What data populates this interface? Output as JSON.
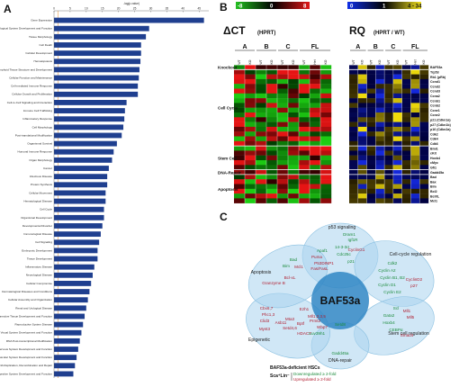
{
  "panels": {
    "a": "A",
    "b": "B",
    "c": "C"
  },
  "chart_data": {
    "type": "bar",
    "orientation": "horizontal",
    "xlabel": "-log(p-value)",
    "xticks": [
      0,
      5,
      10,
      15,
      20,
      25,
      30,
      35,
      40,
      45
    ],
    "xlim": [
      0,
      48
    ],
    "threshold_line": 1.3,
    "categories": [
      "Gene Expression",
      "Hematological System Development and Function",
      "Tissue Morphology",
      "Cell Death",
      "Cellular Development",
      "Hematopoiesis",
      "Lymphoid Tissue Structure and Development",
      "Cellular Function and Maintenance",
      "Cell-mediated Immune Response",
      "Cellular Growth and Proliferation",
      "Cell-to-Cell Signaling and Interaction",
      "Immune Cell Trafficking",
      "Inflammatory Response",
      "Cell Morphology",
      "Post-translational Modification",
      "Organismal Survival",
      "Humoral Immune Response",
      "Organ Morphology",
      "Cancer",
      "Infectious Disease",
      "Protein Synthesis",
      "Cellular Movement",
      "Hematological Disease",
      "Cell Cycle",
      "Organismal Development",
      "Developmental Disorder",
      "Immunological Disease",
      "Cell Signaling",
      "Embryonic Development",
      "Tissue Development",
      "Inflammatory Disease",
      "Neurological Disease",
      "Cellular Compromise",
      "Dermatological Diseases and Conditions",
      "Cellular Assembly and Organization",
      "Renal and Urological Disease",
      "Connective Tissue Development and Function",
      "Reproductive System Disease",
      "Visual System Development and Function",
      "RNA Post-transcriptional Modification",
      "Nervous System Development and Function",
      "Cardiovascular System Development and Function",
      "DNA Replication, Recombination and Repair",
      "Digestive System Development and Function"
    ],
    "values": [
      46.5,
      29.5,
      28.5,
      27.0,
      27.0,
      26.8,
      26.5,
      26.3,
      26.0,
      26.0,
      22.5,
      22.0,
      21.8,
      21.5,
      21.0,
      19.5,
      18.5,
      18.0,
      17.0,
      16.5,
      16.5,
      16.0,
      16.0,
      15.5,
      15.5,
      15.0,
      14.5,
      14.0,
      13.5,
      13.5,
      12.5,
      12.0,
      11.5,
      11.0,
      10.5,
      10.0,
      9.5,
      9.0,
      8.5,
      8.0,
      7.5,
      7.0,
      6.5,
      6.0
    ]
  },
  "heatmap": {
    "dct_title": "ΔCT",
    "dct_sub": "(HPRT)",
    "rq_title": "RQ",
    "rq_sub": "(HPRT / WT)",
    "dct_scale": [
      "-8",
      "0",
      "8"
    ],
    "rq_scale": [
      "0",
      "1",
      "4 - 34"
    ],
    "groups": [
      "A",
      "B",
      "C",
      "FL"
    ],
    "dct_cols": [
      "WT",
      "KO",
      "WT",
      "KO",
      "WT",
      "KO",
      "WT",
      "Het",
      "KO"
    ],
    "rq_cols": [
      "WT",
      "KO",
      "WT",
      "KO",
      "WT",
      "KO",
      "WT",
      "Het",
      "KO"
    ],
    "row_groups": [
      "Knockout",
      "Cell Cycle",
      "Stem Cell",
      "DNA-Repair",
      "Apoptosis"
    ],
    "genes": [
      "BAF53a",
      "Trp53",
      "Rb1 (pRb)",
      "Ccnd1",
      "Ccnd2",
      "Ccnd3",
      "Ccna2",
      "Ccnb1",
      "Ccnb2",
      "Ccne1",
      "Ccne2",
      "p21 (Cdkn1a)",
      "p27 (Cdkn1b)",
      "p16 (Cdkn2a)",
      "Cdk2",
      "Cdk4",
      "Cdk6",
      "Bmi1",
      "cKit",
      "Hoxb4",
      "cMyc",
      "Gfi1",
      "Gadd45a",
      "Bad",
      "Bax",
      "Bim",
      "Bcl2",
      "BclXL",
      "Mcl1"
    ]
  },
  "venn": {
    "center": "BAF53a",
    "petals": [
      {
        "title": "p53 signaling",
        "green": [
          "Dram1",
          "Igf1R",
          "Apaf1",
          "14-3-3σ",
          "Cdc25c",
          "p21"
        ],
        "red": [
          "Puma",
          "P53DINP1",
          "Fas/FasL",
          "CyclinG1"
        ]
      },
      {
        "title": "Cell-cycle regulation",
        "green": [
          "Cdk2",
          "Cyclin A2",
          "Cyclin B1, B2",
          "Cyclin D1",
          "Cyclin E2"
        ],
        "red": [
          "CyclinD2",
          "p27"
        ]
      },
      {
        "title": "Stem cell regulation",
        "green": [
          "Scl",
          "Gata2",
          "Hoxb4",
          "CEBPα"
        ],
        "red": [
          "Mll1",
          "Mll5",
          "Smad4"
        ]
      },
      {
        "title": "DNA-repair",
        "green": [
          "Gadd45a"
        ],
        "red": []
      },
      {
        "title": "Epigenetic",
        "green": [
          "Setd8",
          "Suv39h1"
        ],
        "red": [
          "Cbx6,7",
          "Phc1,3",
          "Ezh1",
          "Clid3",
          "Mta3",
          "Mll1,2,3,5",
          "Asb11",
          "Bptf",
          "Wbp7",
          "Myst3",
          "Setd4,6",
          "Prmt2",
          "HDAC7"
        ]
      },
      {
        "title": "Apoptosis",
        "green": [
          "Bad",
          "Bim"
        ],
        "red": [
          "Mcl1",
          "Granzyme B",
          "Bcl-xL"
        ]
      }
    ],
    "legend_title": "BAF53a-deficient HSCs",
    "legend_pop": "Sca⁺Lin⁻",
    "legend_green": "Downregulated ≥ 2-fold",
    "legend_red": "Upregulated ≥ 2-fold"
  }
}
